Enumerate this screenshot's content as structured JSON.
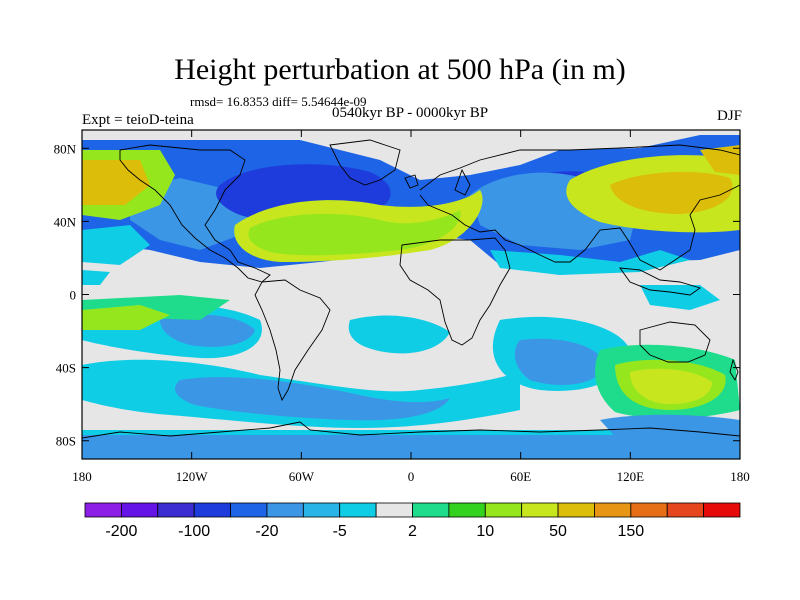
{
  "title": "Height perturbation at 500 hPa (in m)",
  "stats": "rmsd= 16.8353 diff= 5.54644e-09",
  "period": "0540kyr BP - 0000kyr BP",
  "experiment": "Expt = teioD-teina",
  "season": "DJF",
  "axes": {
    "x_ticks": [
      "180",
      "120W",
      "60W",
      "0",
      "60E",
      "120E",
      "180"
    ],
    "y_ticks": [
      "80N",
      "40N",
      "0",
      "40S",
      "80S"
    ],
    "lon_range": [
      -180,
      180
    ],
    "lat_range": [
      -90,
      90
    ]
  },
  "colorbar": {
    "colors": [
      "#8c1ee6",
      "#6414e6",
      "#3c2dd2",
      "#1e3cdc",
      "#1e64e6",
      "#3c96e6",
      "#28b4e6",
      "#10cde6",
      "#e6e6e6",
      "#1edc8c",
      "#32d21e",
      "#96e61e",
      "#c8e61e",
      "#dcbe0a",
      "#e69614",
      "#e66e14",
      "#e6461e",
      "#e60a0a"
    ],
    "labels": [
      "-200",
      "-100",
      "-20",
      "-5",
      "2",
      "10",
      "50",
      "150"
    ]
  },
  "field_colors": {
    "background": "#e6e6e6",
    "light_blue": "#3c96e6",
    "cyan": "#10cde6",
    "mid_blue": "#1e64e6",
    "dark_blue": "#1e3cdc",
    "green": "#32d21e",
    "lime": "#96e61e",
    "yellow": "#c8e61e",
    "orange": "#dcbe0a",
    "teal": "#1edc8c"
  }
}
